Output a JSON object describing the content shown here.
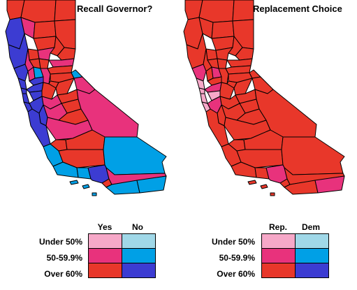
{
  "maps": {
    "left": {
      "title": "Recall Governor?",
      "colors": {
        "yes_under50": "#f6a8c8",
        "yes_50_60": "#e8327c",
        "yes_over60": "#e8372a",
        "no_under50": "#a0d8e8",
        "no_50_60": "#00a0e6",
        "no_over60": "#3c3cd2"
      }
    },
    "right": {
      "title": "Replacement Choice",
      "colors": {
        "rep_under50": "#f6a8c8",
        "rep_50_60": "#e8327c",
        "rep_over60": "#e8372a",
        "dem_under50": "#a0d8e8",
        "dem_50_60": "#00a0e6",
        "dem_over60": "#3c3cd2"
      }
    }
  },
  "legend_left": {
    "columns": [
      "Yes",
      "No"
    ],
    "rows": [
      "Under 50%",
      "50-59.9%",
      "Over 60%"
    ],
    "swatches": [
      [
        "#f6a8c8",
        "#a0d8e8"
      ],
      [
        "#e8327c",
        "#00a0e6"
      ],
      [
        "#e8372a",
        "#3c3cd2"
      ]
    ]
  },
  "legend_right": {
    "columns": [
      "Rep.",
      "Dem"
    ],
    "rows": [
      "Under 50%",
      "50-59.9%",
      "Over 60%"
    ],
    "swatches": [
      [
        "#f6a8c8",
        "#a0d8e8"
      ],
      [
        "#e8327c",
        "#00a0e6"
      ],
      [
        "#e8372a",
        "#3c3cd2"
      ]
    ]
  }
}
